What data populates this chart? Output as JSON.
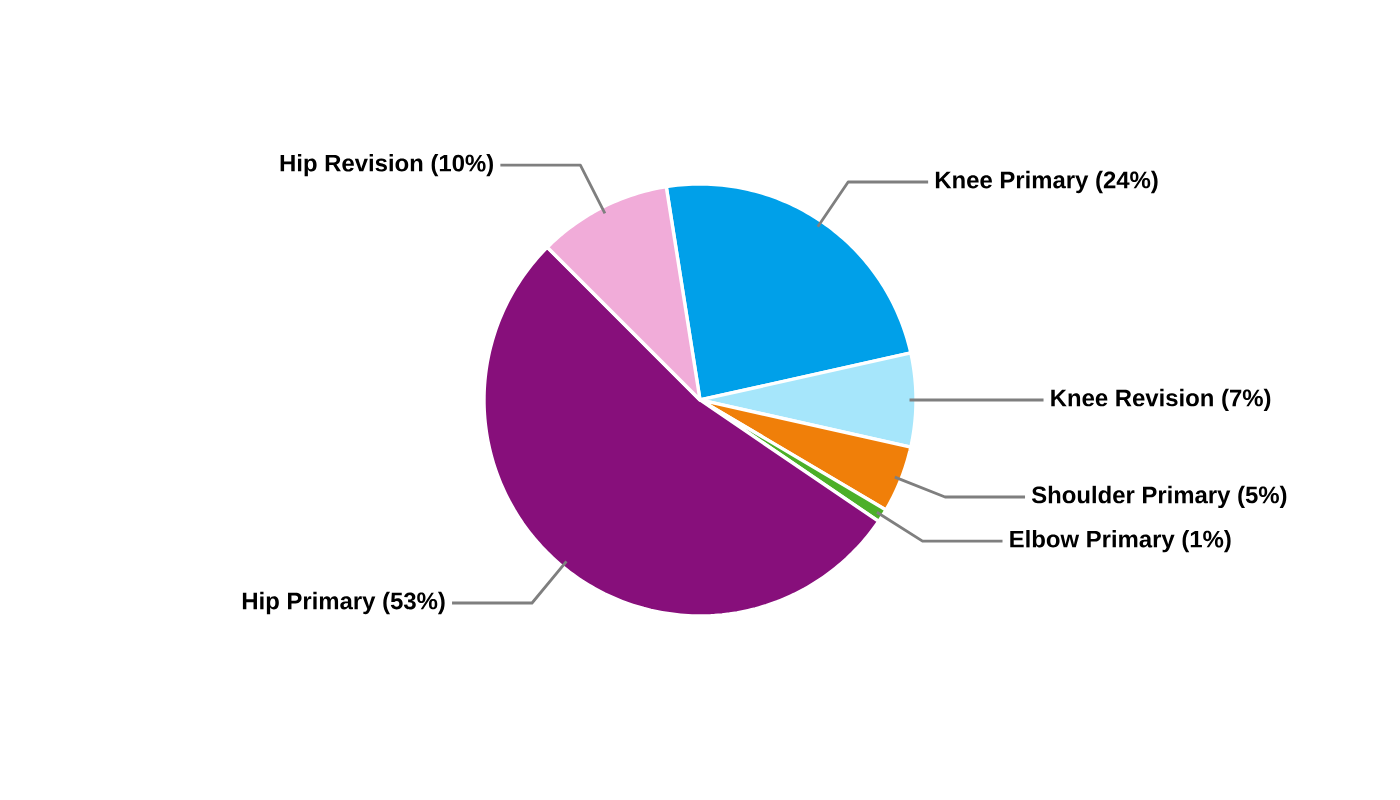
{
  "chart_data": {
    "type": "pie",
    "categories": [
      "Knee Primary",
      "Knee Revision",
      "Shoulder Primary",
      "Elbow Primary",
      "Hip Primary",
      "Hip Revision"
    ],
    "values": [
      24,
      7,
      5,
      1,
      53,
      10
    ],
    "value_labels": [
      "(24%)",
      "(7%)",
      "(5%)",
      "(1%)",
      "(53%)",
      "(10%)"
    ],
    "colors": [
      "#00a0e9",
      "#a6e6fb",
      "#f07f09",
      "#4caf28",
      "#870f7b",
      "#f1acd9"
    ]
  }
}
